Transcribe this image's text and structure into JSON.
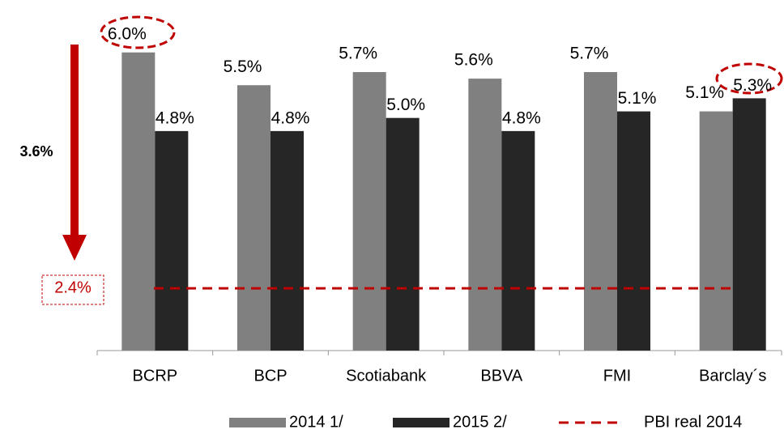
{
  "chart_data": {
    "type": "bar",
    "categories": [
      "BCRP",
      "BCP",
      "Scotiabank",
      "BBVA",
      "FMI",
      "Barclay´s"
    ],
    "series": [
      {
        "name": "2014 1/",
        "color": "#808080",
        "values": [
          6.0,
          5.5,
          5.7,
          5.6,
          5.7,
          5.1
        ],
        "value_labels": [
          "6.0%",
          "5.5%",
          "5.7%",
          "5.6%",
          "5.7%",
          "5.1%"
        ]
      },
      {
        "name": "2015 2/",
        "color": "#262626",
        "values": [
          4.8,
          4.8,
          5.0,
          4.8,
          5.1,
          5.3
        ],
        "value_labels": [
          "4.8%",
          "4.8%",
          "5.0%",
          "4.8%",
          "5.1%",
          "5.3%"
        ]
      }
    ],
    "reference_line": {
      "name": "PBI real 2014",
      "value": 2.4,
      "label": "2.4%",
      "color": "#c00000"
    },
    "annotation": "3.6%",
    "ylim": [
      1.45,
      6.8
    ]
  }
}
